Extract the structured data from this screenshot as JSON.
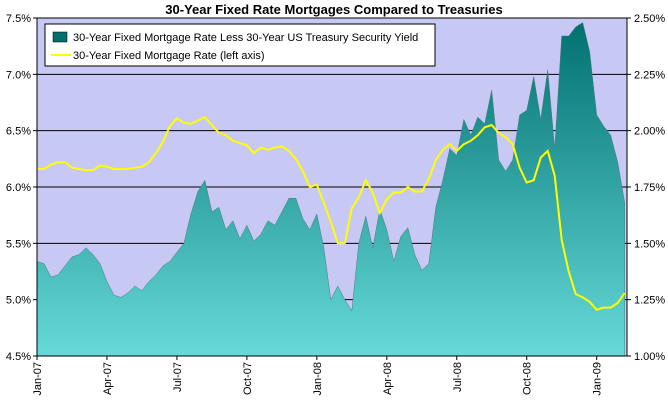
{
  "chart_data": {
    "type": "area+line",
    "title": "30-Year Fixed Rate Mortgages Compared to Treasuries",
    "x_tick_labels": [
      "Jan-07",
      "Apr-07",
      "Jul-07",
      "Oct-07",
      "Jan-08",
      "Apr-08",
      "Jul-08",
      "Oct-08",
      "Jan-09"
    ],
    "y_left": {
      "min": 4.5,
      "max": 7.5,
      "step": 0.5,
      "tick_labels": [
        "4.5%",
        "5.0%",
        "5.5%",
        "6.0%",
        "6.5%",
        "7.0%",
        "7.5%"
      ]
    },
    "y_right": {
      "min": 1.0,
      "max": 2.5,
      "step": 0.25,
      "tick_labels": [
        "1.00%",
        "1.25%",
        "1.50%",
        "1.75%",
        "2.00%",
        "2.25%",
        "2.50%"
      ]
    },
    "x_range_months": [
      0,
      25.3
    ],
    "x_unit": "months since Jan-07",
    "plot_background": "#c8c8f5",
    "gridlines": "horizontal",
    "legend_position": "top-left",
    "series": [
      {
        "name": "30-Year Fixed Mortgage Rate Less 30-Year US Treasury Security Yield",
        "type": "area",
        "axis": "right",
        "color_top": "#006f6f",
        "color_bottom": "#66d9d9",
        "x": [
          0,
          0.3,
          0.6,
          0.9,
          1.2,
          1.5,
          1.8,
          2.1,
          2.4,
          2.7,
          3.0,
          3.3,
          3.6,
          3.9,
          4.2,
          4.5,
          4.8,
          5.1,
          5.4,
          5.7,
          6.0,
          6.3,
          6.6,
          6.9,
          7.2,
          7.5,
          7.8,
          8.1,
          8.4,
          8.7,
          9.0,
          9.3,
          9.6,
          9.9,
          10.2,
          10.5,
          10.8,
          11.1,
          11.4,
          11.7,
          12.0,
          12.3,
          12.6,
          12.9,
          13.2,
          13.5,
          13.8,
          14.1,
          14.4,
          14.7,
          15.0,
          15.3,
          15.6,
          15.9,
          16.2,
          16.5,
          16.8,
          17.1,
          17.4,
          17.7,
          18.0,
          18.3,
          18.6,
          18.9,
          19.2,
          19.5,
          19.8,
          20.1,
          20.4,
          20.7,
          21.0,
          21.3,
          21.6,
          21.9,
          22.2,
          22.5,
          22.8,
          23.1,
          23.4,
          23.7,
          24.0,
          24.3,
          24.6,
          24.9,
          25.2
        ],
        "values": [
          1.42,
          1.41,
          1.35,
          1.36,
          1.4,
          1.44,
          1.45,
          1.48,
          1.45,
          1.41,
          1.33,
          1.27,
          1.26,
          1.28,
          1.31,
          1.29,
          1.33,
          1.36,
          1.4,
          1.42,
          1.46,
          1.5,
          1.63,
          1.73,
          1.78,
          1.64,
          1.66,
          1.56,
          1.6,
          1.52,
          1.58,
          1.51,
          1.54,
          1.6,
          1.58,
          1.64,
          1.7,
          1.7,
          1.61,
          1.56,
          1.63,
          1.48,
          1.25,
          1.31,
          1.25,
          1.2,
          1.5,
          1.62,
          1.48,
          1.65,
          1.56,
          1.42,
          1.53,
          1.57,
          1.45,
          1.38,
          1.41,
          1.66,
          1.78,
          1.92,
          1.89,
          2.05,
          1.98,
          2.06,
          2.03,
          2.18,
          1.87,
          1.82,
          1.87,
          2.07,
          2.09,
          2.24,
          2.05,
          2.27,
          1.92,
          2.42,
          2.42,
          2.46,
          2.48,
          2.35,
          2.07,
          2.02,
          1.98,
          1.86,
          1.68
        ]
      },
      {
        "name": "30-Year Fixed Mortgage Rate (left axis)",
        "type": "line",
        "axis": "left",
        "color": "#ffff00",
        "x": [
          0,
          0.3,
          0.6,
          0.9,
          1.2,
          1.5,
          1.8,
          2.1,
          2.4,
          2.7,
          3.0,
          3.3,
          3.6,
          3.9,
          4.2,
          4.5,
          4.8,
          5.1,
          5.4,
          5.7,
          6.0,
          6.3,
          6.6,
          6.9,
          7.2,
          7.5,
          7.8,
          8.1,
          8.4,
          8.7,
          9.0,
          9.3,
          9.6,
          9.9,
          10.2,
          10.5,
          10.8,
          11.1,
          11.4,
          11.7,
          12.0,
          12.3,
          12.6,
          12.9,
          13.2,
          13.5,
          13.8,
          14.1,
          14.4,
          14.7,
          15.0,
          15.3,
          15.6,
          15.9,
          16.2,
          16.5,
          16.8,
          17.1,
          17.4,
          17.7,
          18.0,
          18.3,
          18.6,
          18.9,
          19.2,
          19.5,
          19.8,
          20.1,
          20.4,
          20.7,
          21.0,
          21.3,
          21.6,
          21.9,
          22.2,
          22.5,
          22.8,
          23.1,
          23.4,
          23.7,
          24.0,
          24.3,
          24.6,
          24.9,
          25.2
        ],
        "values": [
          6.16,
          6.16,
          6.2,
          6.22,
          6.22,
          6.17,
          6.16,
          6.15,
          6.15,
          6.19,
          6.18,
          6.16,
          6.16,
          6.16,
          6.17,
          6.18,
          6.22,
          6.3,
          6.4,
          6.54,
          6.61,
          6.57,
          6.56,
          6.59,
          6.62,
          6.55,
          6.48,
          6.46,
          6.41,
          6.39,
          6.37,
          6.3,
          6.35,
          6.33,
          6.35,
          6.36,
          6.32,
          6.25,
          6.14,
          6.0,
          6.02,
          5.86,
          5.69,
          5.5,
          5.5,
          5.81,
          5.91,
          6.06,
          5.95,
          5.77,
          5.89,
          5.95,
          5.95,
          6.0,
          5.96,
          5.96,
          6.07,
          6.24,
          6.33,
          6.38,
          6.32,
          6.38,
          6.41,
          6.46,
          6.53,
          6.55,
          6.48,
          6.44,
          6.38,
          6.17,
          6.04,
          6.06,
          6.26,
          6.32,
          6.1,
          5.53,
          5.25,
          5.05,
          5.02,
          4.98,
          4.91,
          4.93,
          4.93,
          4.97,
          5.06
        ]
      }
    ]
  }
}
